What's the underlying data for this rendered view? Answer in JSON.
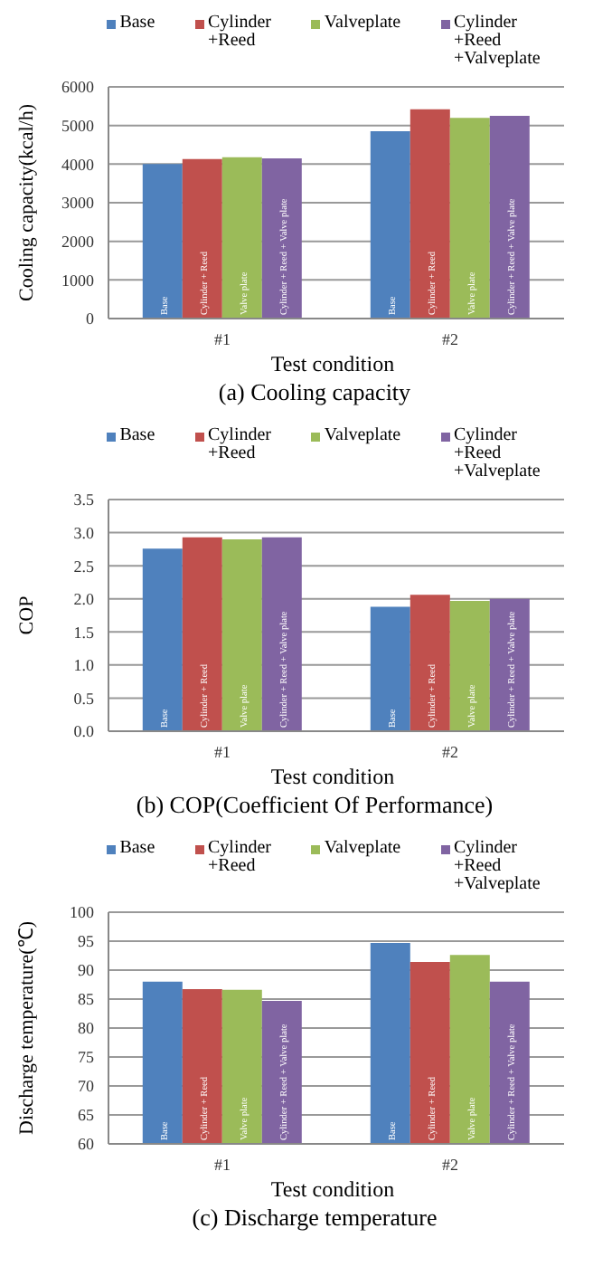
{
  "chart_data": [
    {
      "type": "bar",
      "title": "(a) Cooling capacity",
      "xlabel": "Test condition",
      "ylabel": "Cooling capacity(kcal/h)",
      "categories": [
        "#1",
        "#2"
      ],
      "series": [
        {
          "name": "Base",
          "color": "#4f81bd",
          "values": [
            4000,
            4850
          ],
          "value_labels": [
            "Base",
            "Base"
          ]
        },
        {
          "name": "Cylinder\n+Reed",
          "color": "#c0504d",
          "values": [
            4130,
            5420
          ],
          "value_labels": [
            "Cylinder + Reed",
            "Cylinder + Reed"
          ]
        },
        {
          "name": "Valveplate",
          "color": "#9bbb59",
          "values": [
            4180,
            5200
          ],
          "value_labels": [
            "Valve plate",
            "Valve plate"
          ]
        },
        {
          "name": "Cylinder\n+Reed\n+Valveplate",
          "color": "#8064a2",
          "values": [
            4150,
            5250
          ],
          "value_labels": [
            "Cylinder + Reed + Valve plate",
            "Cylinder + Reed + Valve plate"
          ]
        }
      ],
      "ylim": [
        0,
        6000
      ],
      "yticks": [
        0,
        1000,
        2000,
        3000,
        4000,
        5000,
        6000
      ],
      "grid": "y",
      "legend": "top"
    },
    {
      "type": "bar",
      "title": "(b) COP(Coefficient Of Performance)",
      "xlabel": "Test condition",
      "ylabel": "COP",
      "categories": [
        "#1",
        "#2"
      ],
      "series": [
        {
          "name": "Base",
          "color": "#4f81bd",
          "values": [
            2.76,
            1.88
          ],
          "value_labels": [
            "Base",
            "Base"
          ]
        },
        {
          "name": "Cylinder\n+Reed",
          "color": "#c0504d",
          "values": [
            2.93,
            2.06
          ],
          "value_labels": [
            "Cylinder + Reed",
            "Cylinder + Reed"
          ]
        },
        {
          "name": "Valveplate",
          "color": "#9bbb59",
          "values": [
            2.9,
            1.97
          ],
          "value_labels": [
            "Valve plate",
            "Valve plate"
          ]
        },
        {
          "name": "Cylinder\n+Reed\n+Valveplate",
          "color": "#8064a2",
          "values": [
            2.93,
            2.0
          ],
          "value_labels": [
            "Cylinder + Reed + Valve plate",
            "Cylinder + Reed + Valve plate"
          ]
        }
      ],
      "ylim": [
        0,
        3.5
      ],
      "yticks": [
        {
          "value": 0,
          "label": "0.0"
        },
        {
          "value": 0.5,
          "label": "0.5"
        },
        {
          "value": 1,
          "label": "1.0"
        },
        {
          "value": 1.5,
          "label": "1.5"
        },
        {
          "value": 2,
          "label": "2.0"
        },
        {
          "value": 2.5,
          "label": "2.5"
        },
        {
          "value": 3,
          "label": "3.0"
        },
        {
          "value": 3.5,
          "label": "3.5"
        }
      ],
      "grid": "y",
      "legend": "top"
    },
    {
      "type": "bar",
      "title": "(c) Discharge temperature",
      "xlabel": "Test condition",
      "ylabel": "Discharge temperature(℃)",
      "categories": [
        "#1",
        "#2"
      ],
      "series": [
        {
          "name": "Base",
          "color": "#4f81bd",
          "values": [
            88.0,
            94.7
          ],
          "value_labels": [
            "Base",
            "Base"
          ]
        },
        {
          "name": "Cylinder\n+Reed",
          "color": "#c0504d",
          "values": [
            86.7,
            91.4
          ],
          "value_labels": [
            "Cylinder + Reed",
            "Cylinder + Reed"
          ]
        },
        {
          "name": "Valveplate",
          "color": "#9bbb59",
          "values": [
            86.6,
            92.6
          ],
          "value_labels": [
            "Valve plate",
            "Valve plate"
          ]
        },
        {
          "name": "Cylinder\n+Reed\n+Valveplate",
          "color": "#8064a2",
          "values": [
            84.7,
            88.0
          ],
          "value_labels": [
            "Cylinder + Reed + Valve plate",
            "Cylinder + Reed + Valve plate"
          ]
        }
      ],
      "ylim": [
        60,
        100
      ],
      "yticks": [
        60,
        65,
        70,
        75,
        80,
        85,
        90,
        95,
        100
      ],
      "grid": "y",
      "legend": "top"
    }
  ]
}
